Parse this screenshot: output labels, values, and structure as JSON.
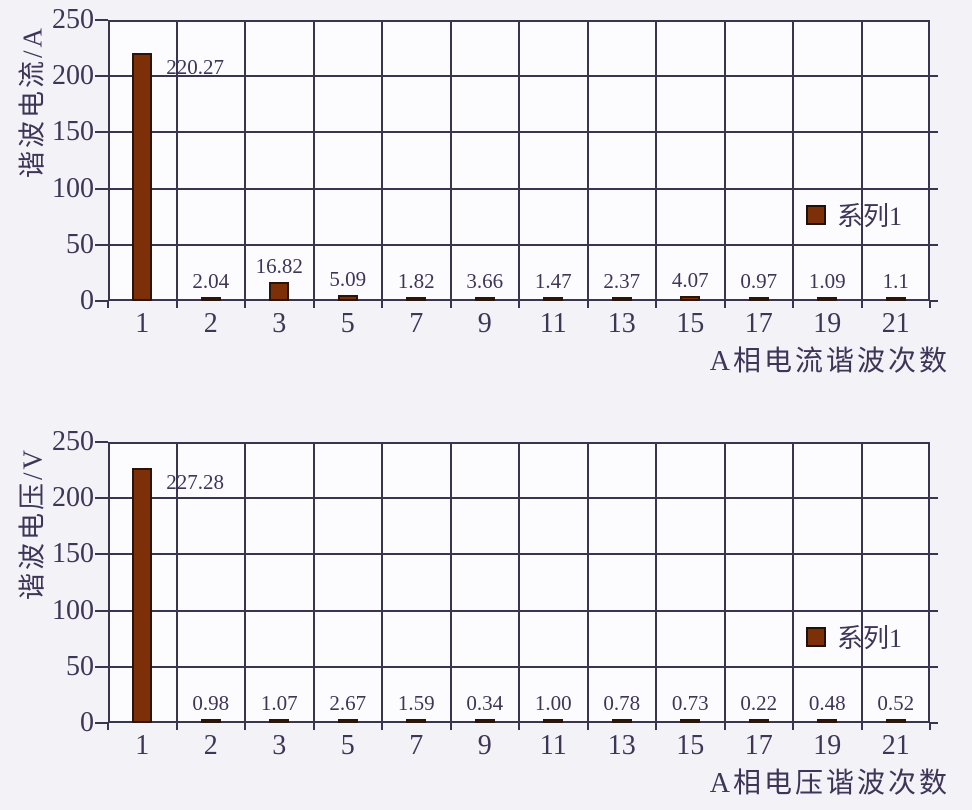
{
  "page": {
    "background": "#f2f2f7",
    "text_color": "#3e3557",
    "grid_color": "#3b3450",
    "bar_color": "#7d3007",
    "bar_border_color": "#29150a"
  },
  "chart_data": [
    {
      "type": "bar",
      "title": "",
      "ylabel": "谐波电流/A",
      "xlabel": "A相电流谐波次数",
      "categories": [
        "1",
        "2",
        "3",
        "5",
        "7",
        "9",
        "11",
        "13",
        "15",
        "17",
        "19",
        "21"
      ],
      "values": [
        220.27,
        2.04,
        16.82,
        5.09,
        1.82,
        3.66,
        1.47,
        2.37,
        4.07,
        0.97,
        1.09,
        1.1
      ],
      "value_labels": [
        "220.27",
        "2.04",
        "16.82",
        "5.09",
        "1.82",
        "3.66",
        "1.47",
        "2.37",
        "4.07",
        "0.97",
        "1.09",
        "1.1"
      ],
      "ylim": [
        0,
        250
      ],
      "yticks": [
        0,
        50,
        100,
        150,
        200,
        250
      ],
      "grid": true,
      "legend": {
        "label": "系列1",
        "position": "middle-right"
      },
      "bar_color": "#7d3007"
    },
    {
      "type": "bar",
      "title": "",
      "ylabel": "谐波电压/V",
      "xlabel": "A相电压谐波次数",
      "categories": [
        "1",
        "2",
        "3",
        "5",
        "7",
        "9",
        "11",
        "13",
        "15",
        "17",
        "19",
        "21"
      ],
      "values": [
        227.28,
        0.98,
        1.07,
        2.67,
        1.59,
        0.34,
        1.0,
        0.78,
        0.73,
        0.22,
        0.48,
        0.52
      ],
      "value_labels": [
        "227.28",
        "0.98",
        "1.07",
        "2.67",
        "1.59",
        "0.34",
        "1.00",
        "0.78",
        "0.73",
        "0.22",
        "0.48",
        "0.52"
      ],
      "ylim": [
        0,
        250
      ],
      "yticks": [
        0,
        50,
        100,
        150,
        200,
        250
      ],
      "grid": true,
      "legend": {
        "label": "系列1",
        "position": "middle-right"
      },
      "bar_color": "#7d3007"
    }
  ]
}
